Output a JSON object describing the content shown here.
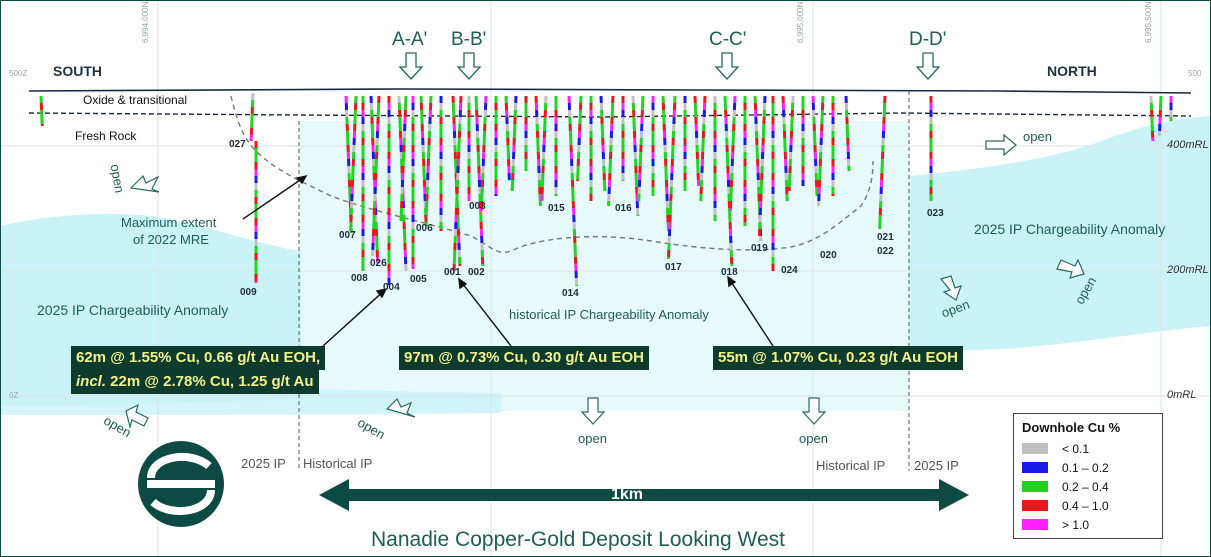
{
  "title": "Nanadie Copper-Gold Deposit Looking West",
  "directions": {
    "south": "SOUTH",
    "north": "NORTH"
  },
  "sections": [
    "A-A'",
    "B-B'",
    "C-C'",
    "D-D'"
  ],
  "layers": {
    "oxide": "Oxide & transitional",
    "fresh": "Fresh Rock"
  },
  "eastings": [
    "6,994,000N",
    "6,995,000N",
    "6,995,500N"
  ],
  "rl_labels": [
    "400mRL",
    "200mRL",
    "0mRL"
  ],
  "edge_labels": {
    "top_left": "500Z",
    "top_right": "500",
    "mid_left": "0Z"
  },
  "mre_label_1": "Maximum extent",
  "mre_label_2": "of 2022 MRE",
  "anomalies": {
    "left": "2025 IP Chargeability Anomaly",
    "right": "2025 IP Chargeability Anomaly",
    "historical": "historical IP Chargeability Anomaly"
  },
  "open_label": "open",
  "ip_boundary": {
    "left_a": "2025 IP",
    "left_b": "Historical IP",
    "right_a": "Historical IP",
    "right_b": "2025 IP"
  },
  "scale_label": "1km",
  "holes": [
    "027",
    "007",
    "006",
    "026",
    "008",
    "004",
    "005",
    "003",
    "001",
    "002",
    "015",
    "014",
    "016",
    "017",
    "018",
    "019",
    "024",
    "020",
    "021",
    "022",
    "023",
    "009"
  ],
  "callouts": {
    "c1_line1": "62m @ 1.55% Cu, 0.66 g/t Au EOH,",
    "c1_incl": "incl.",
    "c1_line2": " 22m @ 2.78% Cu, 1.25 g/t Au",
    "c2": "97m @ 0.73% Cu, 0.30 g/t Au EOH",
    "c3": "55m @ 1.07% Cu, 0.23 g/t Au EOH"
  },
  "legend": {
    "title": "Downhole Cu %",
    "items": [
      {
        "label": "< 0.1",
        "color": "#c0c0c0"
      },
      {
        "label": "0.1 – 0.2",
        "color": "#1a1ae6"
      },
      {
        "label": "0.2 – 0.4",
        "color": "#22d422"
      },
      {
        "label": "0.4 – 1.0",
        "color": "#e61a1a"
      },
      {
        "label": "> 1.0",
        "color": "#ff22ff"
      }
    ]
  },
  "colors": {
    "anomaly": "#c9f3f7",
    "historical": "#e6fafc",
    "brand": "#0d4a44",
    "callout_bg": "#0f3a2e",
    "callout_text": "#f2f28a"
  }
}
